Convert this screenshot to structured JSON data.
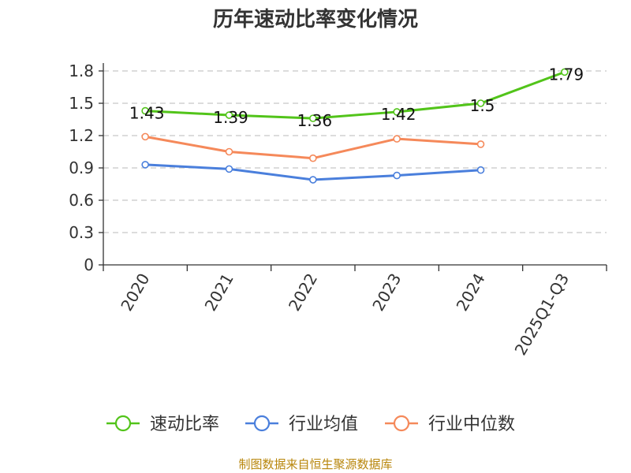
{
  "chart_data": {
    "type": "line",
    "title": "历年速动比率变化情况",
    "categories": [
      "2020",
      "2021",
      "2022",
      "2023",
      "2024",
      "2025Q1-Q3"
    ],
    "ylim": [
      0,
      1.8
    ],
    "yticks": [
      "0",
      "0.3",
      "0.6",
      "0.9",
      "1.2",
      "1.5",
      "1.8"
    ],
    "grid": true,
    "legend_position": "bottom",
    "series": [
      {
        "name": "速动比率",
        "color": "#52c41a",
        "values": [
          1.43,
          1.39,
          1.36,
          1.42,
          1.5,
          1.79
        ],
        "labels": [
          "1.43",
          "1.39",
          "1.36",
          "1.42",
          "1.5",
          "1.79"
        ]
      },
      {
        "name": "行业均值",
        "color": "#4a7fdc",
        "values": [
          0.93,
          0.89,
          0.79,
          0.83,
          0.88,
          null
        ]
      },
      {
        "name": "行业中位数",
        "color": "#f5895a",
        "values": [
          1.19,
          1.05,
          0.99,
          1.17,
          1.12,
          null
        ]
      }
    ]
  },
  "source_text": "制图数据来自恒生聚源数据库"
}
